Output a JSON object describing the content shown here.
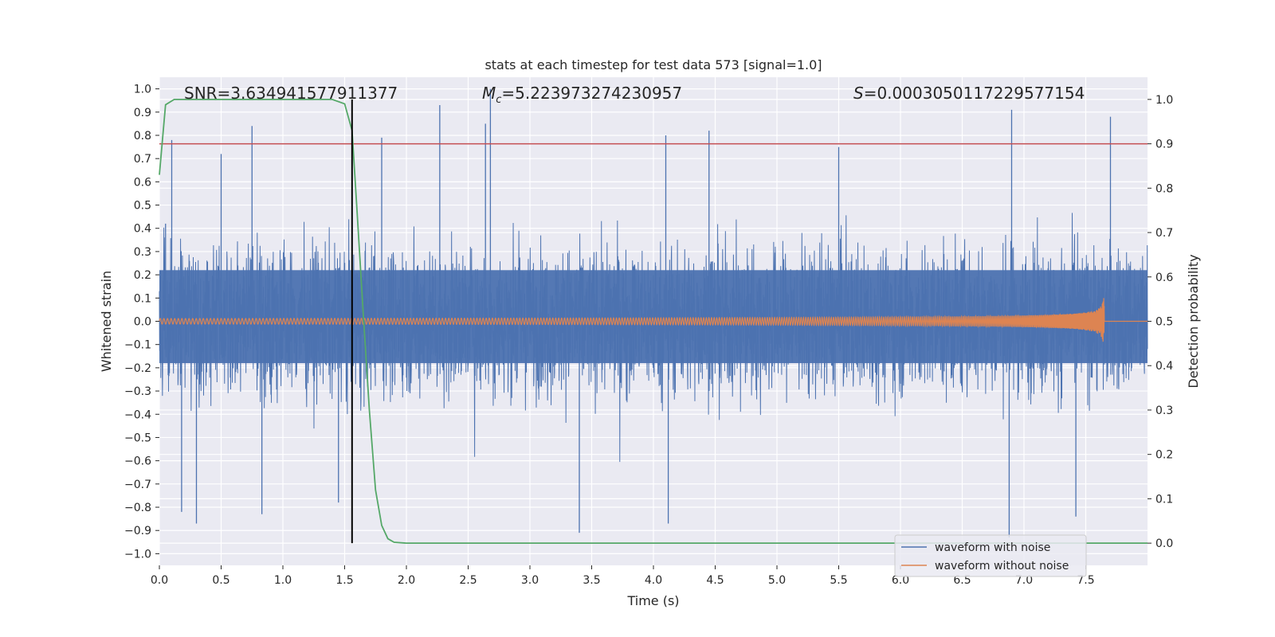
{
  "chart_data": {
    "type": "line",
    "title": "stats at each timestep for test data 573 [signal=1.0]",
    "xlabel": "Time (s)",
    "ylabel": "Whitened strain",
    "y2label": "Detection probability",
    "xlim": [
      0.0,
      8.0
    ],
    "ylim": [
      -1.05,
      1.05
    ],
    "y2lim": [
      -0.05,
      1.05
    ],
    "xticks": [
      "0.0",
      "0.5",
      "1.0",
      "1.5",
      "2.0",
      "2.5",
      "3.0",
      "3.5",
      "4.0",
      "4.5",
      "5.0",
      "5.5",
      "6.0",
      "6.5",
      "7.0",
      "7.5"
    ],
    "yticks": [
      "1.0",
      "0.9",
      "0.8",
      "0.7",
      "0.6",
      "0.5",
      "0.4",
      "0.3",
      "0.2",
      "0.1",
      "0.0",
      "−0.1",
      "−0.2",
      "−0.3",
      "−0.4",
      "−0.5",
      "−0.6",
      "−0.7",
      "−0.8",
      "−0.9",
      "−1.0"
    ],
    "y2ticks": [
      "1.0",
      "0.9",
      "0.8",
      "0.7",
      "0.6",
      "0.5",
      "0.4",
      "0.3",
      "0.2",
      "0.1",
      "0.0"
    ],
    "annotations": {
      "snr": "SNR=3.634941577911377",
      "mc_symbol": "M",
      "mc_sub": "c",
      "mc_value": "=5.223973274230957",
      "s_symbol": "S",
      "s_value": "=0.0003050117229577154"
    },
    "threshold": 0.9,
    "threshold_color": "#c44e52",
    "detection_time": 1.56,
    "grid": true,
    "legend_position": "lower-right",
    "series": [
      {
        "name": "waveform with noise",
        "color": "#4c72b0",
        "noise_envelope": 0.4,
        "peaks": [
          {
            "x": 0.05,
            "y": 0.42
          },
          {
            "x": 0.1,
            "y": 0.78
          },
          {
            "x": 0.18,
            "y": -0.82
          },
          {
            "x": 0.3,
            "y": -0.87
          },
          {
            "x": 0.5,
            "y": 0.72
          },
          {
            "x": 0.75,
            "y": 0.84
          },
          {
            "x": 0.83,
            "y": -0.83
          },
          {
            "x": 1.45,
            "y": -0.78
          },
          {
            "x": 1.8,
            "y": 0.79
          },
          {
            "x": 2.27,
            "y": 0.93
          },
          {
            "x": 2.68,
            "y": 1.0
          },
          {
            "x": 2.64,
            "y": 0.85
          },
          {
            "x": 3.4,
            "y": -0.91
          },
          {
            "x": 4.1,
            "y": 0.8
          },
          {
            "x": 4.45,
            "y": 0.82
          },
          {
            "x": 5.5,
            "y": 0.75
          },
          {
            "x": 6.9,
            "y": 0.91
          },
          {
            "x": 6.88,
            "y": -0.93
          },
          {
            "x": 7.42,
            "y": -0.84
          },
          {
            "x": 7.7,
            "y": 0.88
          },
          {
            "x": 4.12,
            "y": -0.87
          }
        ]
      },
      {
        "name": "waveform without noise",
        "color": "#dd8452",
        "merger_time": 7.65,
        "start_amplitude": 0.012,
        "peak_amplitude": 0.1
      },
      {
        "name": "detection probability",
        "color": "#55a868",
        "x": [
          0.0,
          0.05,
          0.12,
          0.3,
          0.6,
          0.9,
          1.2,
          1.4,
          1.5,
          1.56,
          1.6,
          1.65,
          1.7,
          1.75,
          1.8,
          1.85,
          1.9,
          2.0,
          3.0,
          4.0,
          5.0,
          6.0,
          7.0,
          8.0
        ],
        "y": [
          0.83,
          0.988,
          1.0,
          1.0,
          1.0,
          1.0,
          1.0,
          1.0,
          0.99,
          0.93,
          0.75,
          0.52,
          0.3,
          0.12,
          0.04,
          0.01,
          0.002,
          0.0,
          0.0,
          0.0,
          0.0,
          0.0,
          0.0,
          0.0
        ]
      }
    ]
  }
}
